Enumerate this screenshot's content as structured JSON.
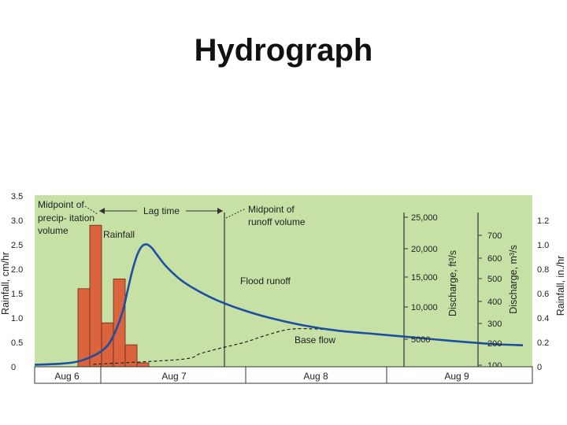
{
  "slide": {
    "title": "Hydrograph"
  },
  "colors": {
    "plot_background": "#c6e0a6",
    "rainfall_bars": "#d9643d",
    "flood_runoff": "#1c4fa1",
    "base_flow": "#222222",
    "axis": "#333333"
  },
  "chart_data": {
    "type": "bar+line",
    "title": "",
    "x_categories": [
      "Aug 6",
      "Aug 7",
      "Aug 8",
      "Aug 9"
    ],
    "rainfall": {
      "name": "Rainfall",
      "axis_label": "Rainfall, cm/hr",
      "values": [
        1.6,
        2.9,
        0.9,
        1.8,
        0.45,
        0.08
      ]
    },
    "flood_runoff": {
      "name": "Flood runoff",
      "axis_label": "Discharge, ft³/s",
      "points": [
        [
          0,
          480
        ],
        [
          6,
          700
        ],
        [
          10,
          1300
        ],
        [
          14,
          3000
        ],
        [
          16,
          5200
        ],
        [
          18,
          9500
        ],
        [
          19,
          13000
        ],
        [
          20,
          16500
        ],
        [
          21,
          19200
        ],
        [
          22,
          20700
        ],
        [
          23,
          21000
        ],
        [
          24,
          20400
        ],
        [
          25,
          19300
        ],
        [
          27,
          17200
        ],
        [
          30,
          14900
        ],
        [
          33,
          13300
        ],
        [
          37,
          11600
        ],
        [
          42,
          10000
        ],
        [
          48,
          8500
        ],
        [
          55,
          7200
        ],
        [
          62,
          6300
        ],
        [
          70,
          5700
        ],
        [
          78,
          5100
        ],
        [
          86,
          4500
        ],
        [
          94,
          4000
        ],
        [
          100,
          3800
        ]
      ]
    },
    "base_flow": {
      "name": "Base flow",
      "points": [
        [
          12,
          550
        ],
        [
          30,
          1400
        ],
        [
          34,
          2400
        ],
        [
          38,
          3300
        ],
        [
          43,
          4300
        ],
        [
          47,
          5400
        ],
        [
          52,
          6500
        ],
        [
          57,
          6600
        ],
        [
          62,
          6300
        ],
        [
          70,
          5700
        ]
      ]
    },
    "annotations": [
      "Midpoint of precip- itation volume",
      "Lag time",
      "Midpoint of runoff volume",
      "Rainfall",
      "Flood runoff",
      "Base flow"
    ],
    "left_axis": {
      "label": "Rainfall, cm/hr",
      "range": [
        0,
        3.5
      ],
      "ticks": [
        "0",
        "0.5",
        "1.0",
        "1.5",
        "2.0",
        "2.5",
        "3.0",
        "3.5"
      ]
    },
    "discharge_cfs_axis": {
      "label": "Discharge, ft³/s",
      "ticks": [
        "5000",
        "10,000",
        "15,000",
        "20,000",
        "25,000"
      ]
    },
    "discharge_cms_axis": {
      "label": "Discharge, m³/s",
      "ticks": [
        "100",
        "200",
        "300",
        "400",
        "500",
        "600",
        "700"
      ]
    },
    "right_axis": {
      "label": "Rainfall, in./hr",
      "ticks": [
        "0",
        "0.2",
        "0.4",
        "0.6",
        "0.8",
        "1.0",
        "1.2"
      ]
    }
  }
}
